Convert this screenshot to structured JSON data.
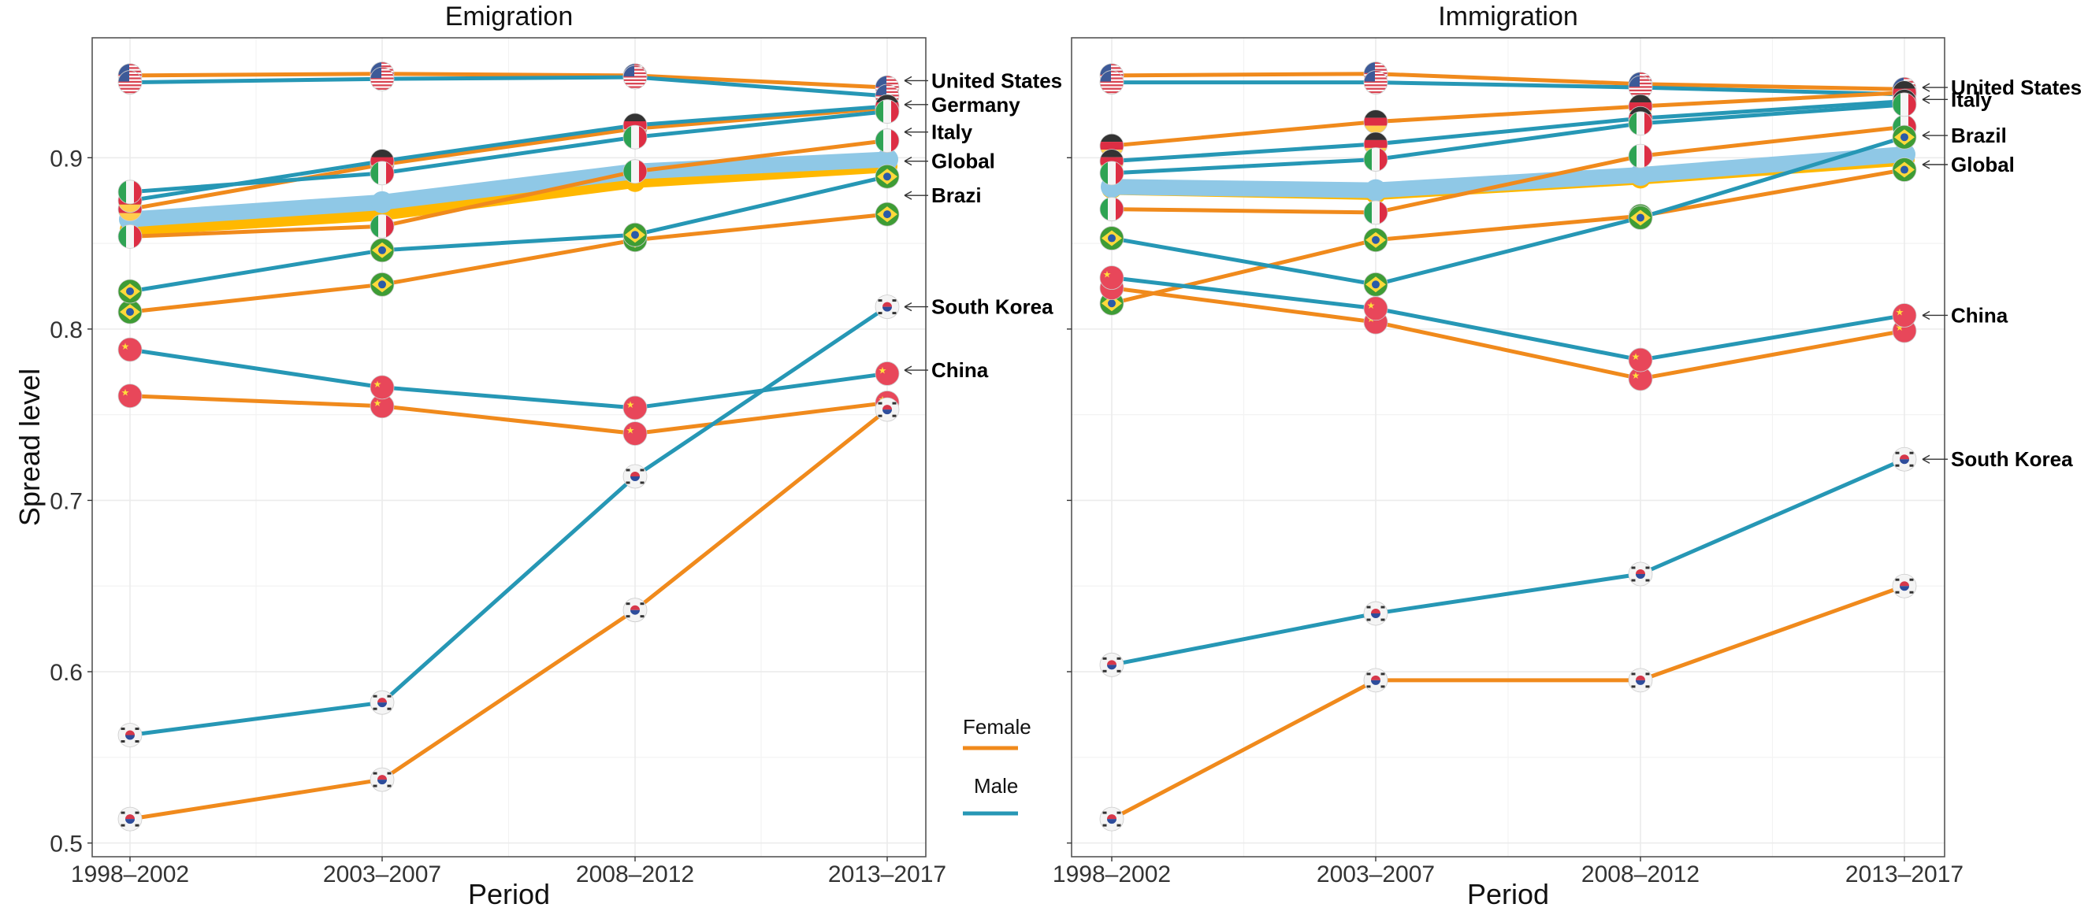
{
  "colors": {
    "female": "#F08A1C",
    "male": "#2697B5",
    "global_female": "#FFB800",
    "global_male": "#8FC8E6",
    "grid": "#EBEBEB",
    "panel_border": "#555555"
  },
  "ylabel": "Spread level",
  "legend": {
    "female_label": "Female",
    "male_label": "Male"
  },
  "chart_data": [
    {
      "type": "line",
      "title": "Emigration",
      "xlabel": "Period",
      "ylabel": "Spread level",
      "categories": [
        "1998–2002",
        "2003–2007",
        "2008–2012",
        "2013–2017"
      ],
      "ylim": [
        0.492,
        0.97
      ],
      "yticks": [
        0.5,
        0.6,
        0.7,
        0.8,
        0.9
      ],
      "ytick_labels": [
        "0.5",
        "0.6",
        "0.7",
        "0.8",
        "0.9"
      ],
      "grid": true,
      "series": [
        {
          "name": "United States",
          "gender": "Female",
          "icon": "us-flag-icon",
          "values": [
            0.948,
            0.949,
            0.948,
            0.941
          ]
        },
        {
          "name": "United States",
          "gender": "Male",
          "icon": "us-flag-icon",
          "values": [
            0.944,
            0.946,
            0.947,
            0.936
          ]
        },
        {
          "name": "Germany",
          "gender": "Female",
          "icon": "germany-flag-icon",
          "values": [
            0.87,
            0.896,
            0.917,
            0.929
          ]
        },
        {
          "name": "Germany",
          "gender": "Male",
          "icon": "germany-flag-icon",
          "values": [
            0.875,
            0.898,
            0.919,
            0.93
          ]
        },
        {
          "name": "Italy",
          "gender": "Female",
          "icon": "italy-flag-icon",
          "values": [
            0.854,
            0.86,
            0.892,
            0.91
          ]
        },
        {
          "name": "Italy",
          "gender": "Male",
          "icon": "italy-flag-icon",
          "values": [
            0.88,
            0.891,
            0.912,
            0.927
          ]
        },
        {
          "name": "Global",
          "gender": "Female",
          "icon": "",
          "values": [
            0.858,
            0.867,
            0.886,
            0.895
          ]
        },
        {
          "name": "Global",
          "gender": "Male",
          "icon": "",
          "values": [
            0.864,
            0.874,
            0.892,
            0.899
          ]
        },
        {
          "name": "Brazi",
          "gender": "Female",
          "icon": "brazil-flag-icon",
          "values": [
            0.81,
            0.826,
            0.852,
            0.867
          ]
        },
        {
          "name": "Brazi",
          "gender": "Male",
          "icon": "brazil-flag-icon",
          "values": [
            0.822,
            0.846,
            0.855,
            0.889
          ]
        },
        {
          "name": "China",
          "gender": "Female",
          "icon": "china-flag-icon",
          "values": [
            0.761,
            0.755,
            0.739,
            0.757
          ]
        },
        {
          "name": "China",
          "gender": "Male",
          "icon": "china-flag-icon",
          "values": [
            0.788,
            0.766,
            0.754,
            0.774
          ]
        },
        {
          "name": "South Korea",
          "gender": "Female",
          "icon": "south-korea-flag-icon",
          "values": [
            0.514,
            0.537,
            0.636,
            0.753
          ]
        },
        {
          "name": "South Korea",
          "gender": "Male",
          "icon": "south-korea-flag-icon",
          "values": [
            0.563,
            0.582,
            0.714,
            0.813
          ]
        }
      ],
      "labels": [
        {
          "text": "United States",
          "value": 0.945
        },
        {
          "text": "Germany",
          "value": 0.931
        },
        {
          "text": "Italy",
          "value": 0.915
        },
        {
          "text": "Global",
          "value": 0.898
        },
        {
          "text": "Brazi",
          "value": 0.878
        },
        {
          "text": "South Korea",
          "value": 0.813
        },
        {
          "text": "China",
          "value": 0.776
        }
      ]
    },
    {
      "type": "line",
      "title": "Immigration",
      "xlabel": "Period",
      "categories": [
        "1998–2002",
        "2003–2007",
        "2008–2012",
        "2013–2017"
      ],
      "ylim": [
        0.492,
        0.97
      ],
      "yticks": [
        0.5,
        0.6,
        0.7,
        0.8,
        0.9
      ],
      "ytick_labels": [],
      "grid": true,
      "series": [
        {
          "name": "United States",
          "gender": "Female",
          "icon": "us-flag-icon",
          "values": [
            0.948,
            0.949,
            0.943,
            0.94
          ]
        },
        {
          "name": "United States",
          "gender": "Male",
          "icon": "us-flag-icon",
          "values": [
            0.944,
            0.944,
            0.941,
            0.937
          ]
        },
        {
          "name": "Germany",
          "gender": "Female",
          "icon": "germany-flag-icon",
          "values": [
            0.907,
            0.921,
            0.93,
            0.938
          ]
        },
        {
          "name": "Germany",
          "gender": "Male",
          "icon": "germany-flag-icon",
          "values": [
            0.898,
            0.908,
            0.923,
            0.933
          ]
        },
        {
          "name": "Italy",
          "gender": "Female",
          "icon": "italy-flag-icon",
          "values": [
            0.87,
            0.868,
            0.901,
            0.918
          ]
        },
        {
          "name": "Italy",
          "gender": "Male",
          "icon": "italy-flag-icon",
          "values": [
            0.891,
            0.899,
            0.92,
            0.931
          ]
        },
        {
          "name": "Global",
          "gender": "Female",
          "icon": "",
          "values": [
            0.882,
            0.879,
            0.888,
            0.899
          ]
        },
        {
          "name": "Global",
          "gender": "Male",
          "icon": "",
          "values": [
            0.883,
            0.881,
            0.89,
            0.902
          ]
        },
        {
          "name": "Brazil",
          "gender": "Female",
          "icon": "brazil-flag-icon",
          "values": [
            0.815,
            0.852,
            0.866,
            0.893
          ]
        },
        {
          "name": "Brazil",
          "gender": "Male",
          "icon": "brazil-flag-icon",
          "values": [
            0.853,
            0.826,
            0.865,
            0.912
          ]
        },
        {
          "name": "China",
          "gender": "Female",
          "icon": "china-flag-icon",
          "values": [
            0.824,
            0.804,
            0.771,
            0.799
          ]
        },
        {
          "name": "China",
          "gender": "Male",
          "icon": "china-flag-icon",
          "values": [
            0.83,
            0.812,
            0.782,
            0.808
          ]
        },
        {
          "name": "South Korea",
          "gender": "Female",
          "icon": "south-korea-flag-icon",
          "values": [
            0.514,
            0.595,
            0.595,
            0.65
          ]
        },
        {
          "name": "South Korea",
          "gender": "Male",
          "icon": "south-korea-flag-icon",
          "values": [
            0.604,
            0.634,
            0.657,
            0.724
          ]
        }
      ],
      "labels": [
        {
          "text": "United States",
          "value": 0.941
        },
        {
          "text": "Italy",
          "value": 0.934
        },
        {
          "text": "Brazil",
          "value": 0.913
        },
        {
          "text": "Global",
          "value": 0.896
        },
        {
          "text": "China",
          "value": 0.808
        },
        {
          "text": "South Korea",
          "value": 0.724
        }
      ]
    }
  ]
}
